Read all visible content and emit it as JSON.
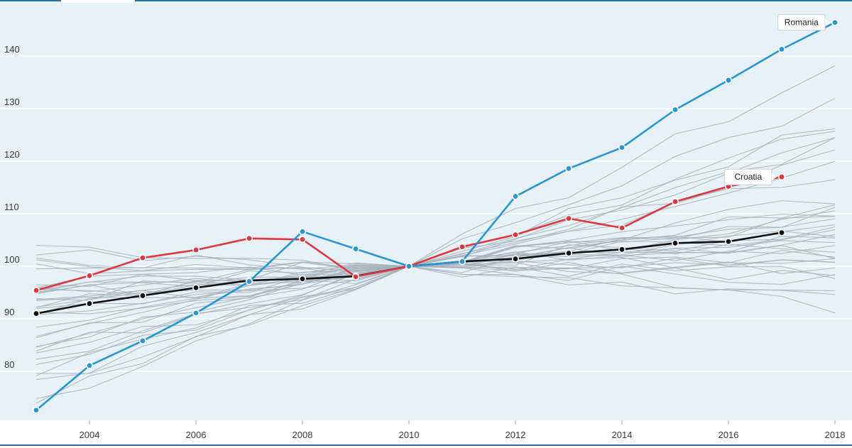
{
  "chart_data": {
    "type": "line",
    "title": "",
    "xlabel": "",
    "ylabel": "",
    "xlim": [
      2003,
      2018
    ],
    "ylim": [
      71,
      148
    ],
    "x_ticks": [
      2004,
      2006,
      2008,
      2010,
      2012,
      2014,
      2016,
      2018
    ],
    "y_ticks": [
      80,
      90,
      100,
      110,
      120,
      130,
      140
    ],
    "x_tick_labels": [
      "2004",
      "2006",
      "2008",
      "2010",
      "2012",
      "2014",
      "2016",
      "2018"
    ],
    "y_tick_labels": [
      "80",
      "90",
      "100",
      "110",
      "120",
      "130",
      "140"
    ],
    "grid": "horizontal",
    "colors": {
      "background": "#e6f1f8",
      "grid": "#ffffff",
      "frame": "#2b6ea8",
      "highlight_a": "#2596d8",
      "highlight_b": "#e0373f",
      "reference": "#111111",
      "others": "#a7b3bc"
    },
    "series": [
      {
        "name": "Romania",
        "role": "highlight_a",
        "labeled": true,
        "points": [
          [
            2003,
            72.6
          ],
          [
            2004,
            81.1
          ],
          [
            2005,
            85.8
          ],
          [
            2006,
            91.1
          ],
          [
            2007,
            97.1
          ],
          [
            2008,
            106.6
          ],
          [
            2009,
            103.3
          ],
          [
            2010,
            100
          ],
          [
            2011,
            100.9
          ],
          [
            2012,
            113.3
          ],
          [
            2013,
            118.6
          ],
          [
            2014,
            122.6
          ],
          [
            2015,
            129.8
          ],
          [
            2016,
            135.4
          ],
          [
            2017,
            141.3
          ],
          [
            2018,
            146.4
          ]
        ]
      },
      {
        "name": "Croatia",
        "role": "highlight_b",
        "labeled": true,
        "points": [
          [
            2003,
            95.4
          ],
          [
            2004,
            98.2
          ],
          [
            2005,
            101.6
          ],
          [
            2006,
            103.1
          ],
          [
            2007,
            105.3
          ],
          [
            2008,
            105.1
          ],
          [
            2009,
            98.0
          ],
          [
            2010,
            100
          ],
          [
            2011,
            103.7
          ],
          [
            2012,
            106.0
          ],
          [
            2013,
            109.1
          ],
          [
            2014,
            107.3
          ],
          [
            2015,
            112.3
          ],
          [
            2016,
            115.2
          ],
          [
            2017,
            117.0
          ]
        ]
      },
      {
        "role": "reference",
        "labeled": false,
        "points": [
          [
            2003,
            91.0
          ],
          [
            2004,
            92.9
          ],
          [
            2005,
            94.4
          ],
          [
            2006,
            95.9
          ],
          [
            2007,
            97.3
          ],
          [
            2008,
            97.6
          ],
          [
            2009,
            98.1
          ],
          [
            2010,
            100
          ],
          [
            2011,
            100.9
          ],
          [
            2012,
            101.4
          ],
          [
            2013,
            102.5
          ],
          [
            2014,
            103.2
          ],
          [
            2015,
            104.4
          ],
          [
            2016,
            104.7
          ],
          [
            2017,
            106.4
          ]
        ]
      }
    ],
    "background_series": [
      {
        "start": 104,
        "end": 132
      },
      {
        "start": 103,
        "end": 138
      },
      {
        "start": 101,
        "end": 127
      },
      {
        "start": 100,
        "end": 124
      },
      {
        "start": 99,
        "end": 121
      },
      {
        "start": 98,
        "end": 123
      },
      {
        "start": 97,
        "end": 118
      },
      {
        "start": 97,
        "end": 113
      },
      {
        "start": 96,
        "end": 112
      },
      {
        "start": 96,
        "end": 110
      },
      {
        "start": 95,
        "end": 109
      },
      {
        "start": 95,
        "end": 108
      },
      {
        "start": 94,
        "end": 108
      },
      {
        "start": 94,
        "end": 107
      },
      {
        "start": 93,
        "end": 107
      },
      {
        "start": 93,
        "end": 106
      },
      {
        "start": 92,
        "end": 106
      },
      {
        "start": 92,
        "end": 105
      },
      {
        "start": 91,
        "end": 105
      },
      {
        "start": 90,
        "end": 104
      },
      {
        "start": 90,
        "end": 104
      },
      {
        "start": 89,
        "end": 103
      },
      {
        "start": 88,
        "end": 103
      },
      {
        "start": 87,
        "end": 102
      },
      {
        "start": 86,
        "end": 102
      },
      {
        "start": 85,
        "end": 101
      },
      {
        "start": 84,
        "end": 100
      },
      {
        "start": 83,
        "end": 99
      },
      {
        "start": 82,
        "end": 98
      },
      {
        "start": 81,
        "end": 97
      },
      {
        "start": 80,
        "end": 96
      },
      {
        "start": 78,
        "end": 94
      },
      {
        "start": 77,
        "end": 92
      },
      {
        "start": 75,
        "end": 109
      },
      {
        "start": 74,
        "end": 111
      },
      {
        "start": 94,
        "end": 120
      },
      {
        "start": 97,
        "end": 126
      }
    ]
  }
}
